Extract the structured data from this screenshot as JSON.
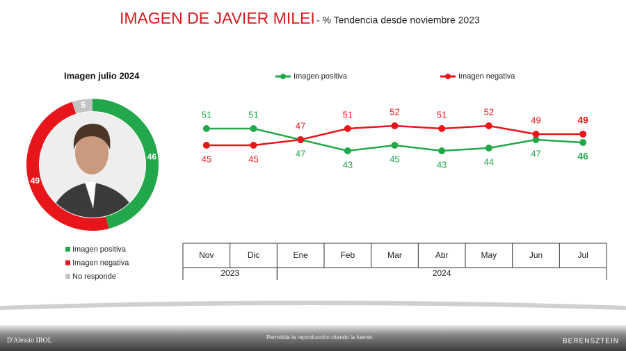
{
  "title": "IMAGEN DE JAVIER MILEI",
  "subtitle": "- % Tendencia desde noviembre 2023",
  "chart_data": [
    {
      "type": "donut",
      "title": "Imagen julio 2024",
      "categories": [
        "Imagen positiva",
        "Imagen negativa",
        "No responde"
      ],
      "values": [
        46,
        49,
        5
      ],
      "colors": [
        "#22a84a",
        "#e8161b",
        "#c4c4c4"
      ]
    },
    {
      "type": "line",
      "categories": [
        "Nov",
        "Dic",
        "Ene",
        "Feb",
        "Mar",
        "Abr",
        "May",
        "Jun",
        "Jul"
      ],
      "years": [
        "2023",
        "2023",
        "2024",
        "2024",
        "2024",
        "2024",
        "2024",
        "2024",
        "2024"
      ],
      "series": [
        {
          "name": "Imagen positiva",
          "color": "#22a84a",
          "values": [
            51,
            51,
            47,
            43,
            45,
            43,
            44,
            47,
            46
          ]
        },
        {
          "name": "Imagen negativa",
          "color": "#e8161b",
          "values": [
            45,
            45,
            47,
            51,
            52,
            51,
            52,
            49,
            49
          ]
        }
      ]
    }
  ],
  "footer": {
    "left": "D'Alessio IROL",
    "center": "Permitida la reproducción citando la fuente.",
    "right": "BERENSZTEIN"
  }
}
